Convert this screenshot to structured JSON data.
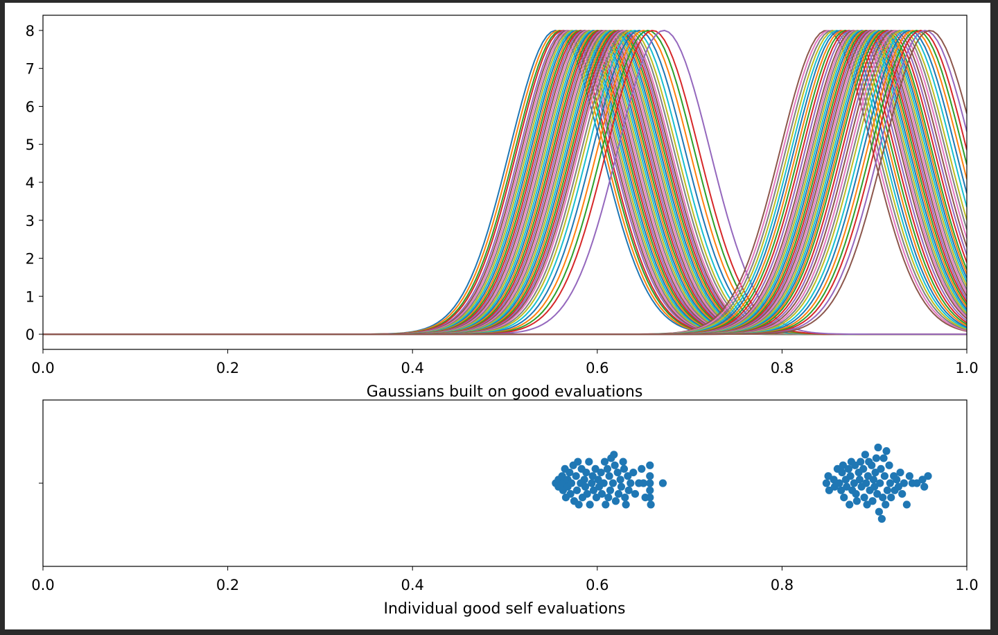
{
  "chart_data": [
    {
      "type": "line",
      "title": "",
      "xlabel": "Gaussians built on good evaluations",
      "ylabel": "",
      "xlim": [
        0.0,
        1.0
      ],
      "ylim": [
        -0.4,
        8.4
      ],
      "x_ticks": [
        "0.0",
        "0.2",
        "0.4",
        "0.6",
        "0.8",
        "1.0"
      ],
      "y_ticks": [
        "0",
        "1",
        "2",
        "3",
        "4",
        "5",
        "6",
        "7",
        "8"
      ],
      "curve_peak": 8.0,
      "curve_sigma": 0.05,
      "grid": false,
      "legend": "none",
      "series_means": [
        0.555,
        0.558,
        0.561,
        0.563,
        0.566,
        0.568,
        0.57,
        0.572,
        0.574,
        0.576,
        0.578,
        0.58,
        0.582,
        0.584,
        0.586,
        0.588,
        0.59,
        0.592,
        0.594,
        0.596,
        0.598,
        0.6,
        0.602,
        0.604,
        0.606,
        0.608,
        0.61,
        0.612,
        0.614,
        0.616,
        0.618,
        0.62,
        0.622,
        0.624,
        0.626,
        0.628,
        0.63,
        0.633,
        0.636,
        0.64,
        0.645,
        0.65,
        0.655,
        0.66,
        0.672,
        0.848,
        0.851,
        0.854,
        0.857,
        0.86,
        0.863,
        0.866,
        0.869,
        0.872,
        0.875,
        0.878,
        0.88,
        0.882,
        0.884,
        0.886,
        0.888,
        0.89,
        0.892,
        0.894,
        0.896,
        0.898,
        0.9,
        0.902,
        0.904,
        0.906,
        0.908,
        0.91,
        0.912,
        0.915,
        0.918,
        0.921,
        0.924,
        0.927,
        0.93,
        0.934,
        0.938,
        0.942,
        0.946,
        0.95,
        0.955,
        0.96
      ],
      "palette": [
        "#1f77b4",
        "#ff7f0e",
        "#2ca02c",
        "#d62728",
        "#9467bd",
        "#8c564b",
        "#e377c2",
        "#7f7f7f",
        "#bcbd22",
        "#17becf"
      ]
    },
    {
      "type": "scatter",
      "title": "",
      "xlabel": "Individual good self evaluations",
      "ylabel": "",
      "xlim": [
        0.0,
        1.0
      ],
      "x_ticks": [
        "0.0",
        "0.2",
        "0.4",
        "0.6",
        "0.8",
        "1.0"
      ],
      "y_ticks": [
        ""
      ],
      "grid": false,
      "legend": "none",
      "color": "#1f77b4",
      "points": [
        [
          0.555,
          0
        ],
        [
          0.558,
          0.5
        ],
        [
          0.558,
          -0.5
        ],
        [
          0.562,
          1
        ],
        [
          0.563,
          0
        ],
        [
          0.563,
          -1
        ],
        [
          0.565,
          2
        ],
        [
          0.566,
          -2
        ],
        [
          0.568,
          0.5
        ],
        [
          0.568,
          -0.5
        ],
        [
          0.57,
          1.5
        ],
        [
          0.571,
          -1.5
        ],
        [
          0.572,
          0
        ],
        [
          0.574,
          2.5
        ],
        [
          0.575,
          -2.5
        ],
        [
          0.577,
          1
        ],
        [
          0.578,
          -1
        ],
        [
          0.579,
          3
        ],
        [
          0.58,
          -3
        ],
        [
          0.582,
          0
        ],
        [
          0.583,
          2
        ],
        [
          0.584,
          -2
        ],
        [
          0.586,
          0.5
        ],
        [
          0.587,
          -0.5
        ],
        [
          0.588,
          1.5
        ],
        [
          0.589,
          -1.5
        ],
        [
          0.591,
          3
        ],
        [
          0.592,
          -3
        ],
        [
          0.594,
          0
        ],
        [
          0.595,
          1
        ],
        [
          0.596,
          -1
        ],
        [
          0.598,
          2
        ],
        [
          0.599,
          -2
        ],
        [
          0.601,
          0.5
        ],
        [
          0.602,
          -0.5
        ],
        [
          0.604,
          1.5
        ],
        [
          0.605,
          -1.5
        ],
        [
          0.607,
          0
        ],
        [
          0.608,
          3
        ],
        [
          0.609,
          -3
        ],
        [
          0.611,
          2
        ],
        [
          0.612,
          -2
        ],
        [
          0.613,
          1
        ],
        [
          0.614,
          -1
        ],
        [
          0.615,
          3.5
        ],
        [
          0.617,
          0
        ],
        [
          0.618,
          4
        ],
        [
          0.619,
          2.5
        ],
        [
          0.62,
          -2.5
        ],
        [
          0.622,
          1.5
        ],
        [
          0.623,
          -1.5
        ],
        [
          0.625,
          0.5
        ],
        [
          0.626,
          -0.5
        ],
        [
          0.628,
          3
        ],
        [
          0.629,
          2
        ],
        [
          0.63,
          -2
        ],
        [
          0.631,
          -3
        ],
        [
          0.633,
          1
        ],
        [
          0.634,
          -1
        ],
        [
          0.636,
          0
        ],
        [
          0.639,
          1.5
        ],
        [
          0.641,
          -1.5
        ],
        [
          0.645,
          0
        ],
        [
          0.648,
          2
        ],
        [
          0.65,
          0
        ],
        [
          0.652,
          -2
        ],
        [
          0.657,
          2.5
        ],
        [
          0.657,
          1
        ],
        [
          0.657,
          0
        ],
        [
          0.657,
          -1
        ],
        [
          0.657,
          -2
        ],
        [
          0.658,
          -3
        ],
        [
          0.671,
          0
        ],
        [
          0.848,
          0
        ],
        [
          0.85,
          1
        ],
        [
          0.851,
          -1
        ],
        [
          0.856,
          0.5
        ],
        [
          0.857,
          -0.5
        ],
        [
          0.86,
          2
        ],
        [
          0.862,
          0
        ],
        [
          0.864,
          -1
        ],
        [
          0.865,
          1.5
        ],
        [
          0.866,
          2.5
        ],
        [
          0.867,
          -2
        ],
        [
          0.869,
          0.5
        ],
        [
          0.87,
          -0.5
        ],
        [
          0.872,
          2
        ],
        [
          0.873,
          -3
        ],
        [
          0.874,
          1
        ],
        [
          0.875,
          3
        ],
        [
          0.876,
          -1
        ],
        [
          0.878,
          0
        ],
        [
          0.879,
          2.5
        ],
        [
          0.88,
          -1.5
        ],
        [
          0.881,
          -2.5
        ],
        [
          0.883,
          1.5
        ],
        [
          0.884,
          0.5
        ],
        [
          0.885,
          3
        ],
        [
          0.886,
          -0.5
        ],
        [
          0.888,
          2
        ],
        [
          0.889,
          -2
        ],
        [
          0.89,
          4
        ],
        [
          0.891,
          0
        ],
        [
          0.892,
          -3
        ],
        [
          0.893,
          1
        ],
        [
          0.894,
          3
        ],
        [
          0.895,
          -1
        ],
        [
          0.897,
          2.5
        ],
        [
          0.898,
          -2.5
        ],
        [
          0.899,
          0.5
        ],
        [
          0.9,
          -0.5
        ],
        [
          0.901,
          1.5
        ],
        [
          0.902,
          3.5
        ],
        [
          0.903,
          -1.5
        ],
        [
          0.904,
          5
        ],
        [
          0.905,
          -4
        ],
        [
          0.906,
          0
        ],
        [
          0.907,
          2
        ],
        [
          0.908,
          -5
        ],
        [
          0.909,
          -2
        ],
        [
          0.91,
          3.5
        ],
        [
          0.911,
          1
        ],
        [
          0.912,
          -3
        ],
        [
          0.913,
          4.5
        ],
        [
          0.914,
          -1
        ],
        [
          0.916,
          2.5
        ],
        [
          0.917,
          0
        ],
        [
          0.918,
          -2
        ],
        [
          0.921,
          1
        ],
        [
          0.922,
          -1
        ],
        [
          0.924,
          0.5
        ],
        [
          0.926,
          -0.5
        ],
        [
          0.928,
          1.5
        ],
        [
          0.93,
          -1.5
        ],
        [
          0.932,
          0
        ],
        [
          0.935,
          -3
        ],
        [
          0.938,
          1
        ],
        [
          0.941,
          0
        ],
        [
          0.946,
          0
        ],
        [
          0.952,
          0.5
        ],
        [
          0.954,
          -0.5
        ],
        [
          0.958,
          1
        ]
      ]
    }
  ]
}
